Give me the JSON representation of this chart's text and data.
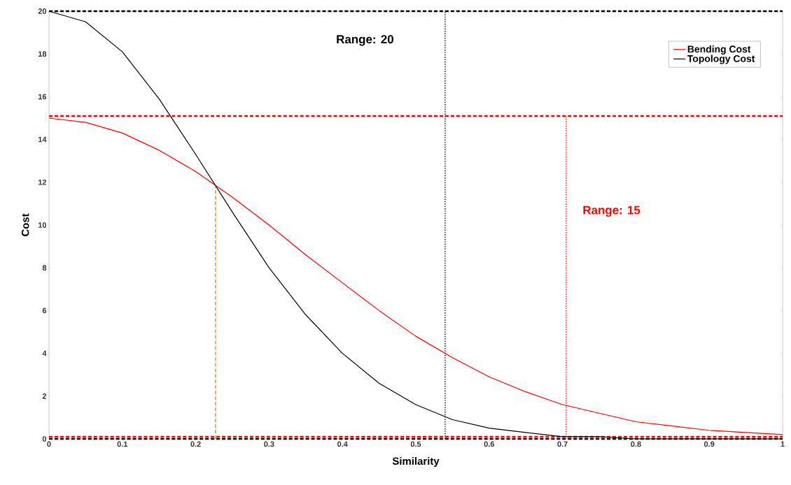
{
  "chart_data": {
    "type": "line",
    "xlabel": "Similarity",
    "ylabel": "Cost",
    "xlim": [
      0,
      1
    ],
    "ylim": [
      0,
      20
    ],
    "xticks": [
      {
        "value": 0,
        "label": "0"
      },
      0.1,
      0.2,
      0.3,
      0.4,
      0.5,
      0.6,
      0.7,
      0.8,
      0.9,
      {
        "value": 1,
        "label": "1"
      }
    ],
    "yticks": [
      0,
      2,
      4,
      6,
      8,
      10,
      12,
      14,
      16,
      18,
      20
    ],
    "legend": "top right",
    "grid": false,
    "marker": "none",
    "series": [
      {
        "name": "Bending Cost",
        "color": "#ff0000",
        "x": [
          0,
          0.05,
          0.1,
          0.15,
          0.2,
          0.25,
          0.3,
          0.35,
          0.4,
          0.45,
          0.5,
          0.55,
          0.6,
          0.65,
          0.7,
          0.75,
          0.8,
          0.85,
          0.9,
          0.95,
          1
        ],
        "values": [
          15,
          14.8,
          14.3,
          13.5,
          12.5,
          11.3,
          10.0,
          8.6,
          7.3,
          6.0,
          4.8,
          3.8,
          2.9,
          2.2,
          1.6,
          1.2,
          0.8,
          0.6,
          0.4,
          0.3,
          0.2
        ]
      },
      {
        "name": "Topology Cost",
        "color": "#000000",
        "x": [
          0,
          0.05,
          0.1,
          0.15,
          0.2,
          0.25,
          0.3,
          0.35,
          0.4,
          0.45,
          0.5,
          0.55,
          0.6,
          0.65,
          0.7,
          0.75,
          0.8,
          0.9,
          1
        ],
        "values": [
          20,
          19.5,
          18.1,
          15.9,
          13.3,
          10.6,
          8.0,
          5.8,
          4.0,
          2.6,
          1.6,
          0.9,
          0.5,
          0.3,
          0.1,
          0.1,
          0.0,
          0.0,
          0.0
        ]
      },
      {
        "color": "#e8701a",
        "line_style": "dashed",
        "x": [
          0.227,
          0.227
        ],
        "values": [
          0,
          11.8
        ]
      },
      {
        "color": "#000000",
        "line_style": "dotted",
        "x": [
          0.54,
          0.54
        ],
        "values": [
          0,
          20
        ]
      },
      {
        "color": "#ff0000",
        "line_style": "dotted",
        "x": [
          0.705,
          0.705
        ],
        "values": [
          0.1,
          15.1
        ]
      }
    ],
    "ref_lines": [
      {
        "axis": "y",
        "value": 20,
        "color": "#000000",
        "line_style": "dashed"
      },
      {
        "axis": "y",
        "value": 15.1,
        "color": "#ff0000",
        "line_style": "dashed"
      },
      {
        "axis": "y",
        "value": 0.1,
        "color": "#ff0000",
        "line_style": "dashed"
      },
      {
        "axis": "y",
        "value": 0,
        "color": "#000000",
        "line_style": "dashed"
      }
    ],
    "annotations": [
      "Range: 20",
      "Range: 15"
    ]
  }
}
